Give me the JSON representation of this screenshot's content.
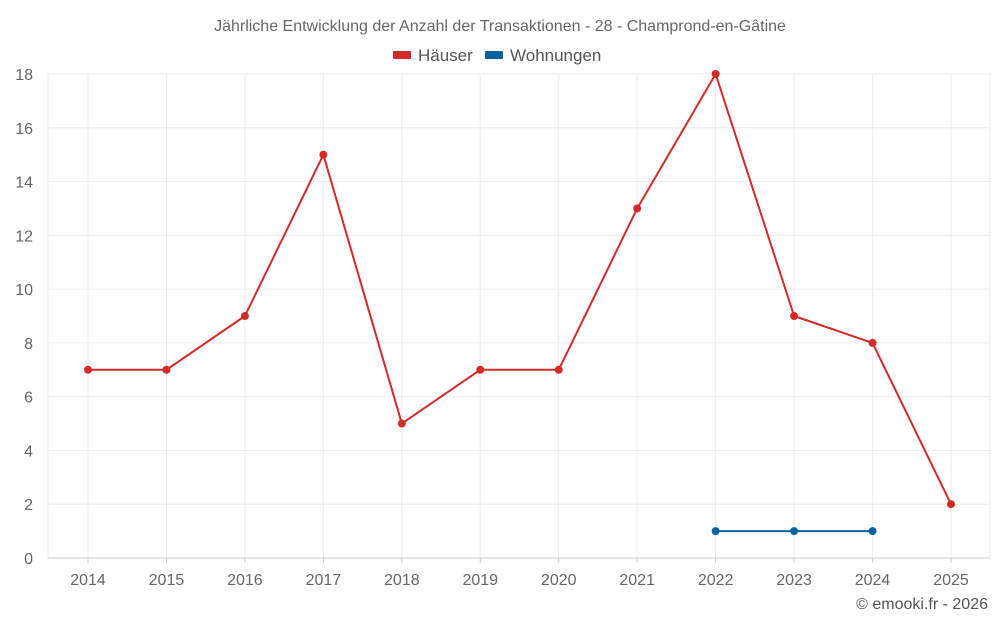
{
  "chart_data": {
    "type": "line",
    "title": "Jährliche Entwicklung der Anzahl der Transaktionen - 28 - Champrond-en-Gâtine",
    "x": [
      "2014",
      "2015",
      "2016",
      "2017",
      "2018",
      "2019",
      "2020",
      "2021",
      "2022",
      "2023",
      "2024",
      "2025"
    ],
    "ylim": [
      0,
      18
    ],
    "yticks": [
      0,
      2,
      4,
      6,
      8,
      10,
      12,
      14,
      16,
      18
    ],
    "grid": true,
    "legend_position": "top-center",
    "series": [
      {
        "name": "Häuser",
        "color": "#d32a2a",
        "values": [
          7,
          7,
          9,
          15,
          5,
          7,
          7,
          13,
          18,
          9,
          8,
          2
        ]
      },
      {
        "name": "Wohnungen",
        "color": "#0a63a0",
        "values": [
          null,
          null,
          null,
          null,
          null,
          null,
          null,
          null,
          1,
          1,
          1,
          null
        ]
      }
    ]
  },
  "credit": "© emooki.fr - 2026"
}
